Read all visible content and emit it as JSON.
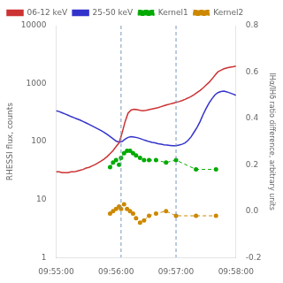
{
  "chart_data": {
    "type": "line",
    "ylabel": "RHESSI flux, counts",
    "y2label": "IHα/IHδ ratio difference, arbitrary units",
    "xlim": [
      0,
      180
    ],
    "xticks": [
      {
        "value": 0,
        "label": "09:55:00"
      },
      {
        "value": 60,
        "label": "09:56:00"
      },
      {
        "value": 120,
        "label": "09:57:00"
      },
      {
        "value": 180,
        "label": "09:58:00"
      }
    ],
    "ylim": [
      1,
      10000
    ],
    "yticks": [
      1,
      10,
      100,
      1000,
      10000
    ],
    "y2lim": [
      -0.2,
      0.8
    ],
    "y2ticks": [
      -0.2,
      {
        "value": 0.0,
        "label": "0.0"
      },
      0.2,
      0.4,
      0.6,
      0.8
    ],
    "log": "y",
    "grid": false,
    "legend": "upper left",
    "vlines": [
      {
        "x": 65,
        "color": "#7799bb",
        "line_style": "dashed"
      },
      {
        "x": 120,
        "color": "#7799bb",
        "line_style": "dashed"
      }
    ],
    "series": [
      {
        "name": "06-12 keV",
        "color": "#cc3333",
        "marker": "none",
        "line_style": "solid",
        "x": [
          0,
          3,
          6,
          9,
          12,
          15,
          18,
          21,
          24,
          27,
          30,
          33,
          36,
          39,
          42,
          45,
          48,
          51,
          54,
          57,
          60,
          63,
          66,
          69,
          72,
          75,
          78,
          81,
          84,
          87,
          90,
          93,
          96,
          99,
          102,
          105,
          108,
          111,
          114,
          117,
          120,
          123,
          126,
          129,
          132,
          135,
          138,
          141,
          144,
          147,
          150,
          153,
          156,
          159,
          162,
          165,
          168,
          171,
          174,
          177,
          180
        ],
        "values": [
          30,
          30,
          29,
          29,
          29,
          30,
          30,
          31,
          32,
          33,
          35,
          36,
          38,
          40,
          43,
          46,
          50,
          55,
          62,
          70,
          82,
          95,
          140,
          220,
          310,
          350,
          360,
          355,
          345,
          340,
          345,
          355,
          365,
          375,
          385,
          400,
          415,
          430,
          445,
          460,
          475,
          490,
          510,
          535,
          565,
          600,
          645,
          700,
          760,
          840,
          940,
          1050,
          1200,
          1400,
          1600,
          1700,
          1800,
          1870,
          1920,
          1960,
          2000
        ]
      },
      {
        "name": "25-50 keV",
        "color": "#3333cc",
        "marker": "none",
        "line_style": "solid",
        "x": [
          0,
          3,
          6,
          9,
          12,
          15,
          18,
          21,
          24,
          27,
          30,
          33,
          36,
          39,
          42,
          45,
          48,
          51,
          54,
          57,
          60,
          63,
          66,
          69,
          72,
          75,
          78,
          81,
          84,
          87,
          90,
          93,
          96,
          99,
          102,
          105,
          108,
          111,
          114,
          117,
          120,
          123,
          126,
          129,
          132,
          135,
          138,
          141,
          144,
          147,
          150,
          153,
          156,
          159,
          162,
          165,
          168,
          171,
          174,
          177,
          180
        ],
        "values": [
          340,
          330,
          315,
          300,
          285,
          270,
          258,
          246,
          235,
          222,
          210,
          198,
          186,
          175,
          165,
          155,
          145,
          133,
          122,
          112,
          102,
          98,
          100,
          110,
          118,
          122,
          120,
          117,
          113,
          108,
          104,
          100,
          97,
          95,
          92,
          90,
          88,
          87,
          86,
          85,
          85,
          87,
          90,
          95,
          105,
          120,
          145,
          175,
          220,
          290,
          370,
          460,
          550,
          640,
          700,
          730,
          740,
          720,
          690,
          660,
          630
        ]
      },
      {
        "name": "Kernel1",
        "color": "#00aa00",
        "marker": "circle",
        "line_style": "dashed",
        "axis": "y2",
        "x": [
          54,
          57,
          60,
          63,
          65,
          68,
          71,
          74,
          77,
          80,
          84,
          88,
          93,
          100,
          110,
          120,
          140,
          160
        ],
        "values": [
          0.19,
          0.21,
          0.22,
          0.2,
          0.23,
          0.25,
          0.26,
          0.26,
          0.25,
          0.24,
          0.23,
          0.22,
          0.22,
          0.22,
          0.21,
          0.22,
          0.18,
          0.18
        ]
      },
      {
        "name": "Kernel2",
        "color": "#cc8800",
        "marker": "circle",
        "line_style": "dashed",
        "axis": "y2",
        "x": [
          54,
          57,
          60,
          63,
          65,
          68,
          71,
          74,
          77,
          80,
          84,
          88,
          93,
          100,
          110,
          120,
          140,
          160
        ],
        "values": [
          -0.01,
          0.0,
          0.01,
          0.02,
          0.01,
          0.03,
          0.01,
          0.0,
          -0.01,
          -0.03,
          -0.05,
          -0.04,
          -0.02,
          -0.01,
          0.0,
          -0.02,
          -0.02,
          -0.02
        ]
      }
    ]
  }
}
